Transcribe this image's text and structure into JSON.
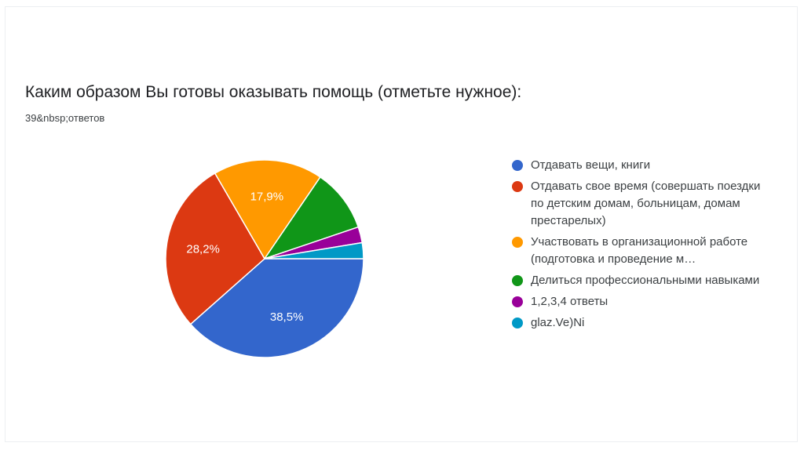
{
  "title": "Каким образом Вы готовы оказывать помощь (отметьте нужное):",
  "subtitle": "39&nbsp;ответов",
  "chart_data": {
    "type": "pie",
    "title": "Каким образом Вы готовы оказывать помощь (отметьте нужное):",
    "slices": [
      {
        "label": "Отдавать вещи, книги",
        "value": 38.5,
        "value_label": "38,5%",
        "color": "#3366cc"
      },
      {
        "label": "Отдавать свое время (совершать поездки по детским домам, больницам, домам престарелых)",
        "value": 28.2,
        "value_label": "28,2%",
        "color": "#dc3912"
      },
      {
        "label": "Участвовать в организационной работе (подготовка и проведение м…",
        "value": 17.9,
        "value_label": "17,9%",
        "color": "#ff9900"
      },
      {
        "label": "Делиться профессиональными навыками",
        "value": 10.3,
        "value_label": "",
        "color": "#109618"
      },
      {
        "label": "1,2,3,4 ответы",
        "value": 2.6,
        "value_label": "",
        "color": "#990099"
      },
      {
        "label": "glaz.Ve)Ni",
        "value": 2.6,
        "value_label": "",
        "color": "#0099c6"
      }
    ],
    "legend_position": "right"
  }
}
